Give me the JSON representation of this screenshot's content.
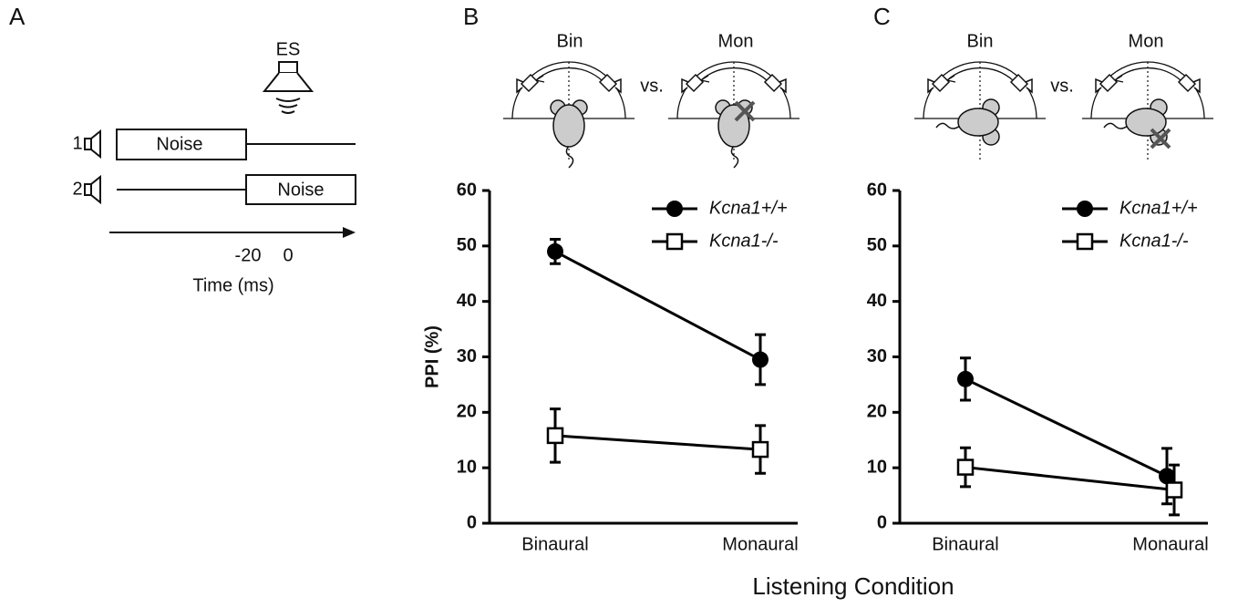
{
  "panel_a": {
    "label": "A",
    "stimulus": "ES",
    "rows": [
      {
        "speaker": "1",
        "noise": "Noise"
      },
      {
        "speaker": "2",
        "noise": "Noise"
      }
    ],
    "time_ticks": [
      -20,
      0
    ],
    "time_label": "Time (ms)"
  },
  "chart_data": [
    {
      "type": "line",
      "panel": "B",
      "illustration": {
        "left": "Bin",
        "vs": "vs.",
        "right": "Mon"
      },
      "y_label": "PPI (%)",
      "categories": [
        "Binaural",
        "Monaural"
      ],
      "ylim": [
        0,
        60
      ],
      "yticks": [
        0,
        10,
        20,
        30,
        40,
        50,
        60
      ],
      "series": [
        {
          "name": "Kcna1+/+",
          "color": "#000000",
          "marker": "circle",
          "values": [
            49,
            29.5
          ],
          "errors": [
            2.2,
            4.5
          ]
        },
        {
          "name": "Kcna1-/-",
          "color": "#000000",
          "marker": "square",
          "values": [
            15.8,
            13.3
          ],
          "errors": [
            4.8,
            4.3
          ]
        }
      ]
    },
    {
      "type": "line",
      "panel": "C",
      "illustration": {
        "left": "Bin",
        "vs": "vs.",
        "right": "Mon"
      },
      "categories": [
        "Binaural",
        "Monaural"
      ],
      "ylim": [
        0,
        60
      ],
      "yticks": [
        0,
        10,
        20,
        30,
        40,
        50,
        60
      ],
      "series": [
        {
          "name": "Kcna1+/+",
          "color": "#000000",
          "marker": "circle",
          "values": [
            26,
            8.5
          ],
          "errors": [
            3.8,
            5
          ]
        },
        {
          "name": "Kcna1-/-",
          "color": "#000000",
          "marker": "square",
          "values": [
            10.1,
            6
          ],
          "errors": [
            3.5,
            4.5
          ]
        }
      ]
    }
  ],
  "x_label": "Listening Condition"
}
